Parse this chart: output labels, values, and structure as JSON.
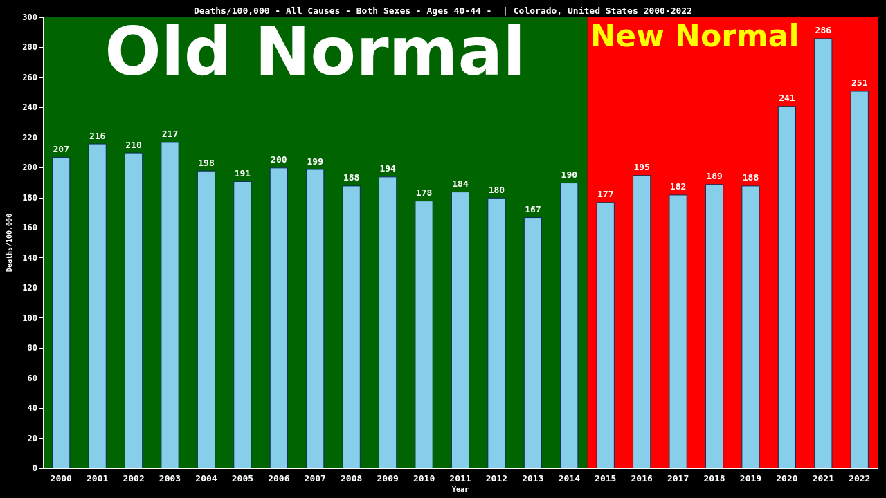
{
  "chart_data": {
    "type": "bar",
    "title": "Deaths/100,000 - All Causes - Both Sexes - Ages 40-44 -  | Colorado, United States 2000-2022",
    "xlabel": "Year",
    "ylabel": "Deaths/100,000",
    "categories": [
      "2000",
      "2001",
      "2002",
      "2003",
      "2004",
      "2005",
      "2006",
      "2007",
      "2008",
      "2009",
      "2010",
      "2011",
      "2012",
      "2013",
      "2014",
      "2015",
      "2016",
      "2017",
      "2018",
      "2019",
      "2020",
      "2021",
      "2022"
    ],
    "values": [
      207,
      216,
      210,
      217,
      198,
      191,
      200,
      199,
      188,
      194,
      178,
      184,
      180,
      167,
      190,
      177,
      195,
      182,
      189,
      188,
      241,
      286,
      251
    ],
    "color": "#87ceeb",
    "ylim": [
      0,
      300
    ],
    "yticks": [
      0,
      20,
      40,
      60,
      80,
      100,
      120,
      140,
      160,
      180,
      200,
      220,
      240,
      260,
      280,
      300
    ],
    "grid": false,
    "data_labels": true,
    "bands": [
      {
        "axis": "x",
        "from": "2000",
        "to": "2014",
        "label": "Old Normal",
        "color": "#006400"
      },
      {
        "axis": "x",
        "from": "2015",
        "to": "2022",
        "label": "New Normal",
        "color": "#ff0000"
      }
    ]
  }
}
